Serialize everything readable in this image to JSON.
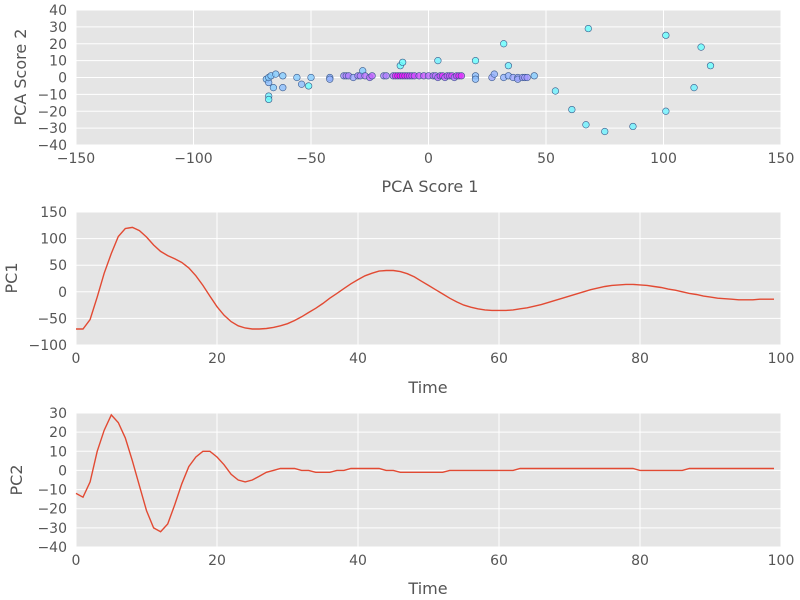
{
  "chart_data": [
    {
      "type": "scatter",
      "xlabel": "PCA Score 1",
      "ylabel": "PCA Score 2",
      "xlim": [
        -150,
        150
      ],
      "ylim": [
        -40,
        40
      ],
      "xticks": [
        -150,
        -100,
        -50,
        0,
        50,
        100,
        150
      ],
      "yticks": [
        -40,
        -30,
        -20,
        -10,
        0,
        10,
        20,
        30,
        40
      ],
      "grid": true,
      "color_gradient": [
        "#66ffff",
        "#ff00ff"
      ],
      "points": [
        {
          "x": -69,
          "y": -1,
          "c": 0.2
        },
        {
          "x": -68,
          "y": -3,
          "c": 0.25
        },
        {
          "x": -68,
          "y": 0,
          "c": 0.2
        },
        {
          "x": -67,
          "y": 1,
          "c": 0.2
        },
        {
          "x": -68,
          "y": -11,
          "c": 0.05
        },
        {
          "x": -68,
          "y": -13,
          "c": 0.0
        },
        {
          "x": -66,
          "y": -6,
          "c": 0.2
        },
        {
          "x": -65,
          "y": 2,
          "c": 0.2
        },
        {
          "x": -62,
          "y": 1,
          "c": 0.2
        },
        {
          "x": -62,
          "y": -6,
          "c": 0.25
        },
        {
          "x": -56,
          "y": 0,
          "c": 0.2
        },
        {
          "x": -54,
          "y": -4,
          "c": 0.25
        },
        {
          "x": -51,
          "y": -5,
          "c": 0.0
        },
        {
          "x": -50,
          "y": 0,
          "c": 0.2
        },
        {
          "x": -42,
          "y": 0,
          "c": 0.3
        },
        {
          "x": -42,
          "y": -1,
          "c": 0.3
        },
        {
          "x": -36,
          "y": 1,
          "c": 0.45
        },
        {
          "x": -35,
          "y": 1,
          "c": 0.5
        },
        {
          "x": -34,
          "y": 1,
          "c": 0.5
        },
        {
          "x": -32,
          "y": 0,
          "c": 0.35
        },
        {
          "x": -30,
          "y": 1,
          "c": 0.5
        },
        {
          "x": -29,
          "y": 1,
          "c": 0.5
        },
        {
          "x": -28,
          "y": 4,
          "c": 0.2
        },
        {
          "x": -27,
          "y": 1,
          "c": 0.55
        },
        {
          "x": -25,
          "y": 0,
          "c": 0.6
        },
        {
          "x": -24,
          "y": 1,
          "c": 0.6
        },
        {
          "x": -19,
          "y": 1,
          "c": 0.5
        },
        {
          "x": -18,
          "y": 1,
          "c": 0.5
        },
        {
          "x": -15,
          "y": 1,
          "c": 0.6
        },
        {
          "x": -14,
          "y": 1,
          "c": 0.9
        },
        {
          "x": -13,
          "y": 1,
          "c": 0.95
        },
        {
          "x": -12,
          "y": 1,
          "c": 0.95
        },
        {
          "x": -11,
          "y": 1,
          "c": 0.9
        },
        {
          "x": -10,
          "y": 1,
          "c": 0.9
        },
        {
          "x": -9,
          "y": 1,
          "c": 0.85
        },
        {
          "x": -8,
          "y": 1,
          "c": 0.8
        },
        {
          "x": -12,
          "y": 7,
          "c": 0.0
        },
        {
          "x": -11,
          "y": 9,
          "c": 0.0
        },
        {
          "x": -7,
          "y": 1,
          "c": 0.75
        },
        {
          "x": -6,
          "y": 1,
          "c": 0.7
        },
        {
          "x": -4,
          "y": 1,
          "c": 0.7
        },
        {
          "x": -2,
          "y": 1,
          "c": 0.65
        },
        {
          "x": 0,
          "y": 1,
          "c": 0.6
        },
        {
          "x": 2,
          "y": 1,
          "c": 0.6
        },
        {
          "x": 3,
          "y": 1,
          "c": 0.55
        },
        {
          "x": 4,
          "y": 0,
          "c": 0.6
        },
        {
          "x": 4,
          "y": 10,
          "c": 0.05
        },
        {
          "x": 5,
          "y": 1,
          "c": 0.7
        },
        {
          "x": 6,
          "y": 1,
          "c": 0.8
        },
        {
          "x": 7,
          "y": 0,
          "c": 0.6
        },
        {
          "x": 8,
          "y": 1,
          "c": 0.7
        },
        {
          "x": 9,
          "y": 1,
          "c": 0.7
        },
        {
          "x": 10,
          "y": 1,
          "c": 0.75
        },
        {
          "x": 11,
          "y": 0,
          "c": 0.55
        },
        {
          "x": 12,
          "y": 1,
          "c": 0.75
        },
        {
          "x": 13,
          "y": 1,
          "c": 0.85
        },
        {
          "x": 14,
          "y": 1,
          "c": 0.8
        },
        {
          "x": 20,
          "y": 1,
          "c": 0.25
        },
        {
          "x": 20,
          "y": -1,
          "c": 0.25
        },
        {
          "x": 20,
          "y": 10,
          "c": 0.0
        },
        {
          "x": 27,
          "y": 0,
          "c": 0.35
        },
        {
          "x": 28,
          "y": 2,
          "c": 0.3
        },
        {
          "x": 32,
          "y": 20,
          "c": 0.0
        },
        {
          "x": 32,
          "y": 0,
          "c": 0.3
        },
        {
          "x": 34,
          "y": 1,
          "c": 0.3
        },
        {
          "x": 34,
          "y": 7,
          "c": 0.05
        },
        {
          "x": 36,
          "y": 0,
          "c": 0.35
        },
        {
          "x": 38,
          "y": 0,
          "c": 0.35
        },
        {
          "x": 38,
          "y": -1,
          "c": 0.35
        },
        {
          "x": 40,
          "y": 0,
          "c": 0.4
        },
        {
          "x": 41,
          "y": 0,
          "c": 0.4
        },
        {
          "x": 42,
          "y": 0,
          "c": 0.4
        },
        {
          "x": 45,
          "y": 1,
          "c": 0.2
        },
        {
          "x": 54,
          "y": -8,
          "c": 0.05
        },
        {
          "x": 61,
          "y": -19,
          "c": 0.05
        },
        {
          "x": 67,
          "y": -28,
          "c": 0.05
        },
        {
          "x": 68,
          "y": 29,
          "c": 0.0
        },
        {
          "x": 75,
          "y": -32,
          "c": 0.05
        },
        {
          "x": 87,
          "y": -29,
          "c": 0.05
        },
        {
          "x": 101,
          "y": 25,
          "c": 0.0
        },
        {
          "x": 101,
          "y": -20,
          "c": 0.05
        },
        {
          "x": 113,
          "y": -6,
          "c": 0.05
        },
        {
          "x": 116,
          "y": 18,
          "c": 0.0
        },
        {
          "x": 120,
          "y": 7,
          "c": 0.0
        }
      ]
    },
    {
      "type": "line",
      "xlabel": "Time",
      "ylabel": "PC1",
      "xlim": [
        0,
        100
      ],
      "ylim": [
        -100,
        150
      ],
      "xticks": [
        0,
        20,
        40,
        60,
        80,
        100
      ],
      "yticks": [
        -100,
        -50,
        0,
        50,
        100,
        150
      ],
      "grid": true,
      "line_color": "#e24a33",
      "x": [
        0,
        1,
        2,
        3,
        4,
        5,
        6,
        7,
        8,
        9,
        10,
        11,
        12,
        13,
        14,
        15,
        16,
        17,
        18,
        19,
        20,
        21,
        22,
        23,
        24,
        25,
        26,
        27,
        28,
        29,
        30,
        31,
        32,
        33,
        34,
        35,
        36,
        37,
        38,
        39,
        40,
        41,
        42,
        43,
        44,
        45,
        46,
        47,
        48,
        49,
        50,
        51,
        52,
        53,
        54,
        55,
        56,
        57,
        58,
        59,
        60,
        61,
        62,
        63,
        64,
        65,
        66,
        67,
        68,
        69,
        70,
        71,
        72,
        73,
        74,
        75,
        76,
        77,
        78,
        79,
        80,
        81,
        82,
        83,
        84,
        85,
        86,
        87,
        88,
        89,
        90,
        91,
        92,
        93,
        94,
        95,
        96,
        97,
        98,
        99
      ],
      "y": [
        -70,
        -70,
        -52,
        -10,
        35,
        72,
        104,
        119,
        121,
        115,
        103,
        88,
        76,
        68,
        62,
        55,
        45,
        30,
        12,
        -8,
        -28,
        -44,
        -56,
        -64,
        -68,
        -70,
        -70,
        -69,
        -67,
        -64,
        -60,
        -54,
        -47,
        -39,
        -31,
        -22,
        -12,
        -3,
        6,
        15,
        23,
        30,
        35,
        39,
        40,
        40,
        38,
        34,
        28,
        20,
        12,
        4,
        -4,
        -12,
        -19,
        -25,
        -29,
        -32,
        -34,
        -35,
        -35,
        -35,
        -34,
        -32,
        -30,
        -27,
        -24,
        -20,
        -16,
        -12,
        -8,
        -4,
        0,
        4,
        7,
        10,
        12,
        13,
        14,
        14,
        13,
        12,
        10,
        8,
        5,
        3,
        0,
        -3,
        -5,
        -8,
        -10,
        -12,
        -13,
        -14,
        -15,
        -15,
        -15,
        -14,
        -14,
        -14
      ]
    },
    {
      "type": "line",
      "xlabel": "Time",
      "ylabel": "PC2",
      "xlim": [
        0,
        100
      ],
      "ylim": [
        -40,
        30
      ],
      "xticks": [
        0,
        20,
        40,
        60,
        80,
        100
      ],
      "yticks": [
        -40,
        -30,
        -20,
        -10,
        0,
        10,
        20,
        30
      ],
      "grid": true,
      "line_color": "#e24a33",
      "x": [
        0,
        1,
        2,
        3,
        4,
        5,
        6,
        7,
        8,
        9,
        10,
        11,
        12,
        13,
        14,
        15,
        16,
        17,
        18,
        19,
        20,
        21,
        22,
        23,
        24,
        25,
        26,
        27,
        28,
        29,
        30,
        31,
        32,
        33,
        34,
        35,
        36,
        37,
        38,
        39,
        40,
        41,
        42,
        43,
        44,
        45,
        46,
        47,
        48,
        49,
        50,
        51,
        52,
        53,
        54,
        55,
        56,
        57,
        58,
        59,
        60,
        61,
        62,
        63,
        64,
        65,
        66,
        67,
        68,
        69,
        70,
        71,
        72,
        73,
        74,
        75,
        76,
        77,
        78,
        79,
        80,
        81,
        82,
        83,
        84,
        85,
        86,
        87,
        88,
        89,
        90,
        91,
        92,
        93,
        94,
        95,
        96,
        97,
        98,
        99
      ],
      "y": [
        -12,
        -14,
        -6,
        10,
        21,
        29,
        25,
        17,
        5,
        -8,
        -21,
        -30,
        -32,
        -28,
        -18,
        -7,
        2,
        7,
        10,
        10,
        7,
        3,
        -2,
        -5,
        -6,
        -5,
        -3,
        -1,
        0,
        1,
        1,
        1,
        0,
        0,
        -1,
        -1,
        -1,
        0,
        0,
        1,
        1,
        1,
        1,
        1,
        0,
        0,
        -1,
        -1,
        -1,
        -1,
        -1,
        -1,
        -1,
        0,
        0,
        0,
        0,
        0,
        0,
        0,
        0,
        0,
        0,
        1,
        1,
        1,
        1,
        1,
        1,
        1,
        1,
        1,
        1,
        1,
        1,
        1,
        1,
        1,
        1,
        1,
        0,
        0,
        0,
        0,
        0,
        0,
        0,
        1,
        1,
        1,
        1,
        1,
        1,
        1,
        1,
        1,
        1,
        1,
        1,
        1
      ]
    }
  ]
}
